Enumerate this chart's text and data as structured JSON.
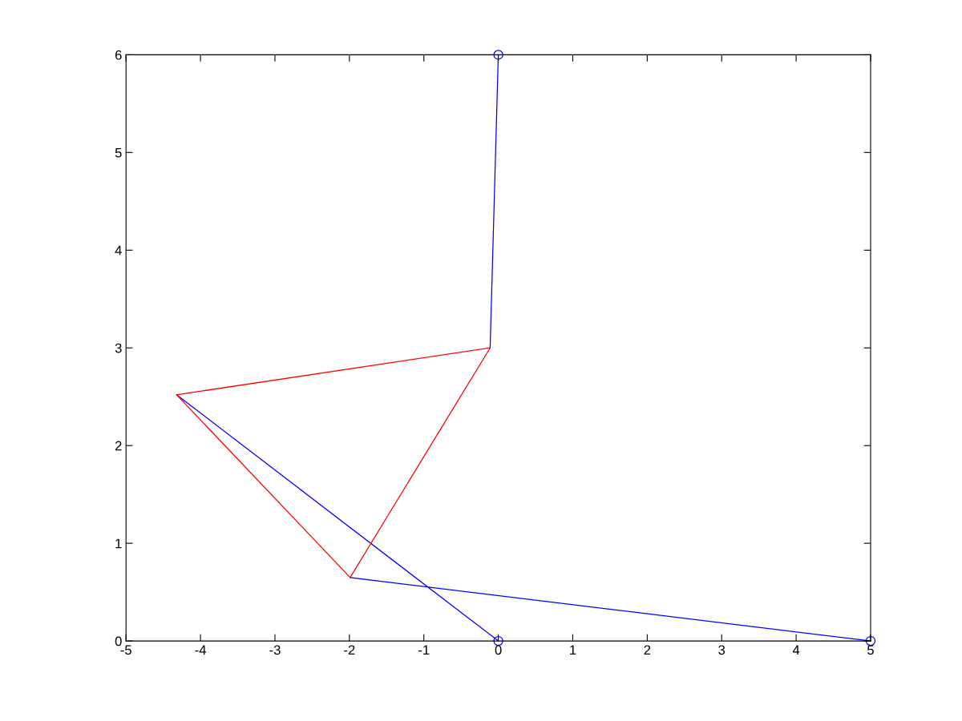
{
  "chart_data": {
    "type": "line",
    "xlim": [
      -5,
      5
    ],
    "ylim": [
      0,
      6
    ],
    "xticks": [
      -5,
      -4,
      -3,
      -2,
      -1,
      0,
      1,
      2,
      3,
      4,
      5
    ],
    "yticks": [
      0,
      1,
      2,
      3,
      4,
      5,
      6
    ],
    "grid": false,
    "marker": "none",
    "line_style": "solid",
    "series": [
      {
        "color": "#0000ff",
        "x": [
          0,
          -0.11,
          null,
          -4.32,
          0,
          null,
          -1.99,
          5
        ],
        "values": [
          6,
          3.0,
          null,
          2.52,
          0,
          null,
          0.65,
          0
        ]
      },
      {
        "color": "#ff0000",
        "x": [
          -0.11,
          -4.32,
          null,
          -4.32,
          -1.99,
          null,
          -1.99,
          -0.11
        ],
        "values": [
          3.0,
          2.52,
          null,
          2.52,
          0.65,
          null,
          0.65,
          3.0
        ]
      },
      {
        "type": "scatter",
        "color": "#0000ff",
        "marker": "circle",
        "x": [
          0,
          0,
          5
        ],
        "values": [
          6,
          0,
          0
        ]
      }
    ]
  }
}
